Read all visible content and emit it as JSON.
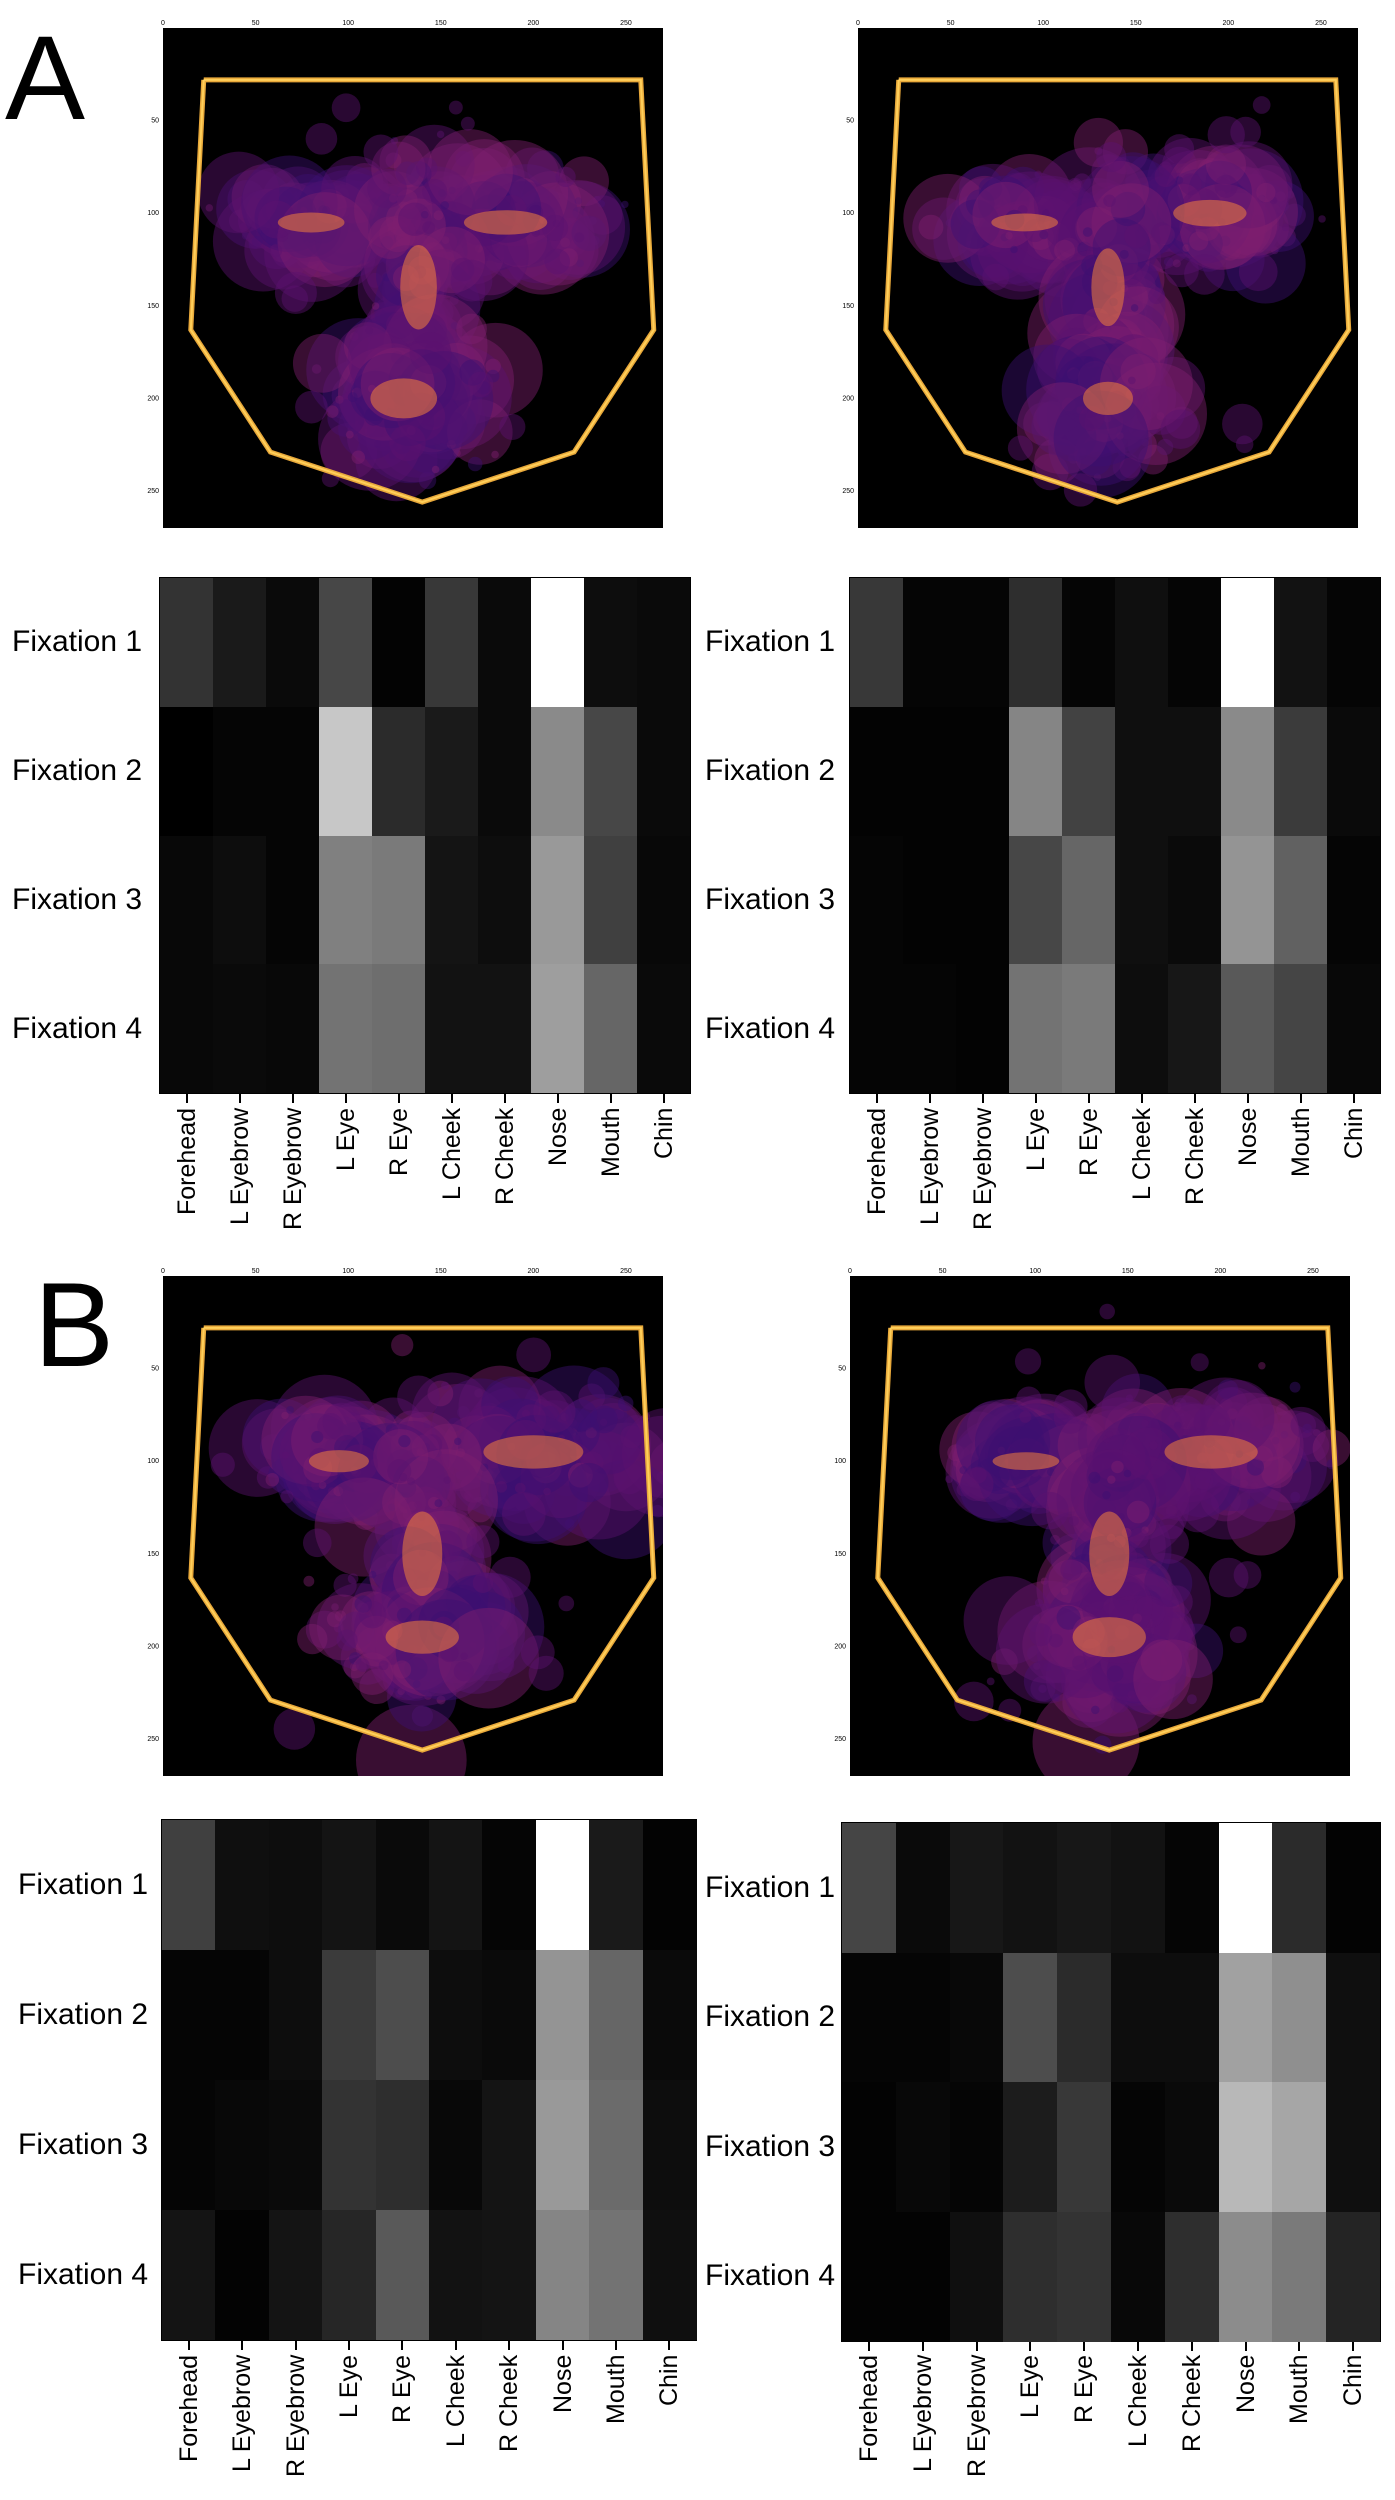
{
  "panel_labels": [
    "A",
    "B"
  ],
  "colors": {
    "polygon": "#ffcf5a",
    "polygon_outer": "#e8a83a",
    "map_background": "#000000",
    "fixation_colormap": "inferno"
  },
  "chart_data": [
    {
      "id": "A-left-map",
      "type": "scatter",
      "description": "fixation bubble map on black, yellow face-outline polygon",
      "xlim": [
        0,
        270
      ],
      "ylim": [
        270,
        0
      ],
      "x_ticks": [
        "0",
        "50",
        "100",
        "150",
        "200",
        "250"
      ],
      "y_ticks": [
        "50",
        "100",
        "150",
        "200",
        "250"
      ],
      "polygon": [
        [
          22,
          28
        ],
        [
          258,
          28
        ],
        [
          265,
          163
        ],
        [
          222,
          229
        ],
        [
          140,
          256
        ],
        [
          58,
          229
        ],
        [
          15,
          163
        ],
        [
          22,
          28
        ]
      ],
      "clusters": [
        {
          "x": 80,
          "y": 105,
          "sx": 20,
          "sy": 9
        },
        {
          "x": 185,
          "y": 105,
          "sx": 25,
          "sy": 11
        },
        {
          "x": 138,
          "y": 140,
          "sx": 11,
          "sy": 38
        },
        {
          "x": 130,
          "y": 200,
          "sx": 20,
          "sy": 18
        }
      ]
    },
    {
      "id": "A-right-map",
      "type": "scatter",
      "xlim": [
        0,
        270
      ],
      "ylim": [
        270,
        0
      ],
      "x_ticks": [
        "0",
        "50",
        "100",
        "150",
        "200",
        "250"
      ],
      "y_ticks": [
        "50",
        "100",
        "150",
        "200",
        "250"
      ],
      "polygon": [
        [
          22,
          28
        ],
        [
          258,
          28
        ],
        [
          265,
          163
        ],
        [
          222,
          229
        ],
        [
          140,
          256
        ],
        [
          58,
          229
        ],
        [
          15,
          163
        ],
        [
          22,
          28
        ]
      ],
      "clusters": [
        {
          "x": 90,
          "y": 105,
          "sx": 20,
          "sy": 8
        },
        {
          "x": 190,
          "y": 100,
          "sx": 22,
          "sy": 12
        },
        {
          "x": 135,
          "y": 140,
          "sx": 10,
          "sy": 35
        },
        {
          "x": 135,
          "y": 200,
          "sx": 15,
          "sy": 15
        }
      ]
    },
    {
      "id": "B-left-map",
      "type": "scatter",
      "xlim": [
        0,
        270
      ],
      "ylim": [
        270,
        0
      ],
      "x_ticks": [
        "0",
        "50",
        "100",
        "150",
        "200",
        "250"
      ],
      "y_ticks": [
        "50",
        "100",
        "150",
        "200",
        "250"
      ],
      "polygon": [
        [
          22,
          28
        ],
        [
          258,
          28
        ],
        [
          265,
          163
        ],
        [
          222,
          229
        ],
        [
          140,
          256
        ],
        [
          58,
          229
        ],
        [
          15,
          163
        ],
        [
          22,
          28
        ]
      ],
      "clusters": [
        {
          "x": 95,
          "y": 100,
          "sx": 18,
          "sy": 10
        },
        {
          "x": 200,
          "y": 95,
          "sx": 30,
          "sy": 15
        },
        {
          "x": 140,
          "y": 150,
          "sx": 12,
          "sy": 38
        },
        {
          "x": 140,
          "y": 195,
          "sx": 22,
          "sy": 15
        }
      ]
    },
    {
      "id": "B-right-map",
      "type": "scatter",
      "xlim": [
        0,
        270
      ],
      "ylim": [
        270,
        0
      ],
      "x_ticks": [
        "0",
        "50",
        "100",
        "150",
        "200",
        "250"
      ],
      "y_ticks": [
        "50",
        "100",
        "150",
        "200",
        "250"
      ],
      "polygon": [
        [
          22,
          28
        ],
        [
          258,
          28
        ],
        [
          265,
          163
        ],
        [
          222,
          229
        ],
        [
          140,
          256
        ],
        [
          58,
          229
        ],
        [
          15,
          163
        ],
        [
          22,
          28
        ]
      ],
      "clusters": [
        {
          "x": 95,
          "y": 100,
          "sx": 20,
          "sy": 8
        },
        {
          "x": 195,
          "y": 95,
          "sx": 28,
          "sy": 15
        },
        {
          "x": 140,
          "y": 150,
          "sx": 12,
          "sy": 38
        },
        {
          "x": 140,
          "y": 195,
          "sx": 22,
          "sy": 18
        }
      ]
    },
    {
      "id": "A-left-heatmap",
      "type": "heatmap",
      "rows": [
        "Fixation 1",
        "Fixation 2",
        "Fixation 3",
        "Fixation 4"
      ],
      "columns": [
        "Forehead",
        "L Eyebrow",
        "R Eyebrow",
        "L Eye",
        "R Eye",
        "L Cheek",
        "R Cheek",
        "Nose",
        "Mouth",
        "Chin"
      ],
      "values": [
        [
          0.2,
          0.1,
          0.04,
          0.28,
          0.01,
          0.22,
          0.04,
          1.0,
          0.05,
          0.04
        ],
        [
          0.0,
          0.02,
          0.02,
          0.78,
          0.17,
          0.1,
          0.04,
          0.54,
          0.28,
          0.04
        ],
        [
          0.03,
          0.05,
          0.02,
          0.5,
          0.48,
          0.08,
          0.05,
          0.6,
          0.25,
          0.03
        ],
        [
          0.03,
          0.04,
          0.03,
          0.45,
          0.43,
          0.07,
          0.07,
          0.62,
          0.4,
          0.04
        ]
      ]
    },
    {
      "id": "A-right-heatmap",
      "type": "heatmap",
      "rows": [
        "Fixation 1",
        "Fixation 2",
        "Fixation 3",
        "Fixation 4"
      ],
      "columns": [
        "Forehead",
        "L Eyebrow",
        "R Eyebrow",
        "L Eye",
        "R Eye",
        "L Cheek",
        "R Cheek",
        "Nose",
        "Mouth",
        "Chin"
      ],
      "values": [
        [
          0.22,
          0.02,
          0.02,
          0.18,
          0.02,
          0.06,
          0.02,
          1.0,
          0.07,
          0.02
        ],
        [
          0.01,
          0.01,
          0.01,
          0.52,
          0.26,
          0.06,
          0.06,
          0.54,
          0.23,
          0.04
        ],
        [
          0.02,
          0.01,
          0.01,
          0.28,
          0.4,
          0.06,
          0.04,
          0.58,
          0.38,
          0.02
        ],
        [
          0.02,
          0.02,
          0.01,
          0.45,
          0.48,
          0.05,
          0.09,
          0.35,
          0.27,
          0.03
        ]
      ]
    },
    {
      "id": "B-left-heatmap",
      "type": "heatmap",
      "rows": [
        "Fixation 1",
        "Fixation 2",
        "Fixation 3",
        "Fixation 4"
      ],
      "columns": [
        "Forehead",
        "L Eyebrow",
        "R Eyebrow",
        "L Eye",
        "R Eye",
        "L Cheek",
        "R Cheek",
        "Nose",
        "Mouth",
        "Chin"
      ],
      "values": [
        [
          0.25,
          0.06,
          0.05,
          0.08,
          0.04,
          0.08,
          0.02,
          1.0,
          0.1,
          0.01
        ],
        [
          0.02,
          0.02,
          0.05,
          0.23,
          0.3,
          0.05,
          0.04,
          0.58,
          0.4,
          0.04
        ],
        [
          0.02,
          0.03,
          0.04,
          0.2,
          0.18,
          0.03,
          0.08,
          0.6,
          0.42,
          0.05
        ],
        [
          0.08,
          0.01,
          0.08,
          0.15,
          0.35,
          0.07,
          0.08,
          0.52,
          0.45,
          0.06
        ]
      ]
    },
    {
      "id": "B-right-heatmap",
      "type": "heatmap",
      "rows": [
        "Fixation 1",
        "Fixation 2",
        "Fixation 3",
        "Fixation 4"
      ],
      "columns": [
        "Forehead",
        "L Eyebrow",
        "R Eyebrow",
        "L Eye",
        "R Eye",
        "L Cheek",
        "R Cheek",
        "Nose",
        "Mouth",
        "Chin"
      ],
      "values": [
        [
          0.27,
          0.04,
          0.09,
          0.07,
          0.09,
          0.07,
          0.02,
          1.0,
          0.17,
          0.01
        ],
        [
          0.02,
          0.02,
          0.03,
          0.3,
          0.17,
          0.05,
          0.05,
          0.63,
          0.56,
          0.06
        ],
        [
          0.01,
          0.03,
          0.02,
          0.11,
          0.22,
          0.02,
          0.04,
          0.72,
          0.65,
          0.06
        ],
        [
          0.01,
          0.01,
          0.06,
          0.18,
          0.2,
          0.03,
          0.18,
          0.55,
          0.48,
          0.14
        ]
      ]
    }
  ]
}
